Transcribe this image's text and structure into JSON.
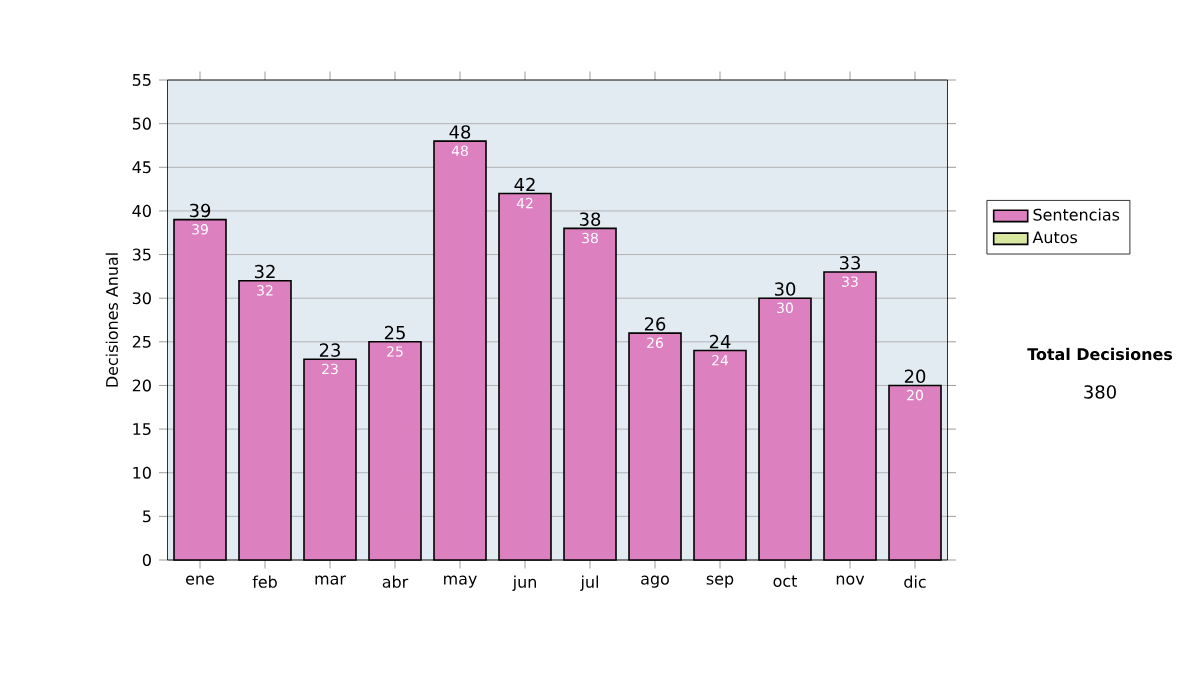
{
  "chart_data": {
    "type": "bar",
    "stacked": true,
    "ylabel": "Decisiones Anual",
    "categories": [
      "ene",
      "feb",
      "mar",
      "abr",
      "may",
      "jun",
      "jul",
      "ago",
      "sep",
      "oct",
      "nov",
      "dic"
    ],
    "series": [
      {
        "name": "Sentencias",
        "color": "#dd80c0",
        "values": [
          39,
          32,
          23,
          25,
          48,
          42,
          38,
          26,
          24,
          30,
          33,
          20
        ],
        "value_labels": [
          "39",
          "32",
          "23",
          "25",
          "48",
          "42",
          "38",
          "26",
          "24",
          "30",
          "33",
          "20"
        ]
      },
      {
        "name": "Autos",
        "color": "#d8e8a0",
        "values": [
          0,
          0,
          0,
          0,
          0,
          0,
          0,
          0,
          0,
          0,
          0,
          0
        ]
      }
    ],
    "totals": [
      "39",
      "32",
      "23",
      "25",
      "48",
      "42",
      "38",
      "26",
      "24",
      "30",
      "33",
      "20"
    ],
    "ylim": [
      0,
      55
    ],
    "yticks": [
      0,
      5,
      10,
      15,
      20,
      25,
      30,
      35,
      40,
      45,
      50,
      55
    ],
    "grid": "y",
    "legend": "right",
    "annotations": [
      "Total Decisiones",
      "380"
    ]
  }
}
